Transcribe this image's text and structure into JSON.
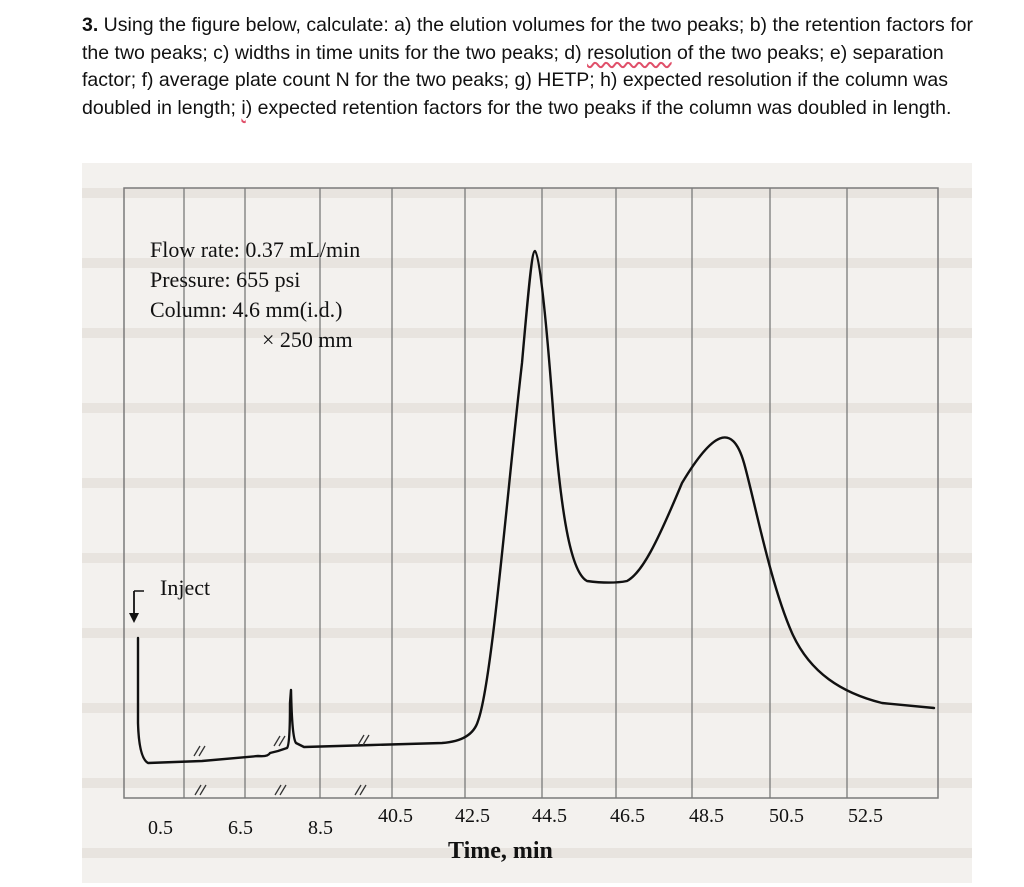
{
  "question": {
    "number": "3.",
    "text_1": " Using the figure below, calculate: a) the elution volumes for the two peaks; b) the retention factors for the two peaks; c) widths in time units for the two peaks; d) ",
    "text_squiggle": "resolution",
    "text_2": " of the two peaks; e) separation factor; f) average plate count N for the two peaks; g) HETP; h) expected resolution if the column was doubled in length; ",
    "text_i": "i",
    "text_3": ") expected retention factors for the two peaks if the column was doubled in length."
  },
  "figure": {
    "conditions": {
      "flow_rate": "Flow rate: 0.37 mL/min",
      "pressure": "Pressure: 655 psi",
      "column_1": "Column: 4.6 mm(i.d.)",
      "column_2": "× 250 mm"
    },
    "inject_label": "Inject",
    "x_axis_title": "Time, min",
    "tick_labels": [
      "0.5",
      "6.5",
      "8.5",
      "40.5",
      "42.5",
      "44.5",
      "46.5",
      "48.5",
      "50.5",
      "52.5"
    ],
    "peaks": [
      {
        "time_min": 42.5,
        "relative_height": 1.0
      },
      {
        "time_min": 48.5,
        "relative_height": 0.65
      }
    ]
  },
  "colors": {
    "grid": "#7a7a7a",
    "trace": "#111111",
    "background": "#f3f1ee",
    "squiggle": "#e0506a"
  }
}
